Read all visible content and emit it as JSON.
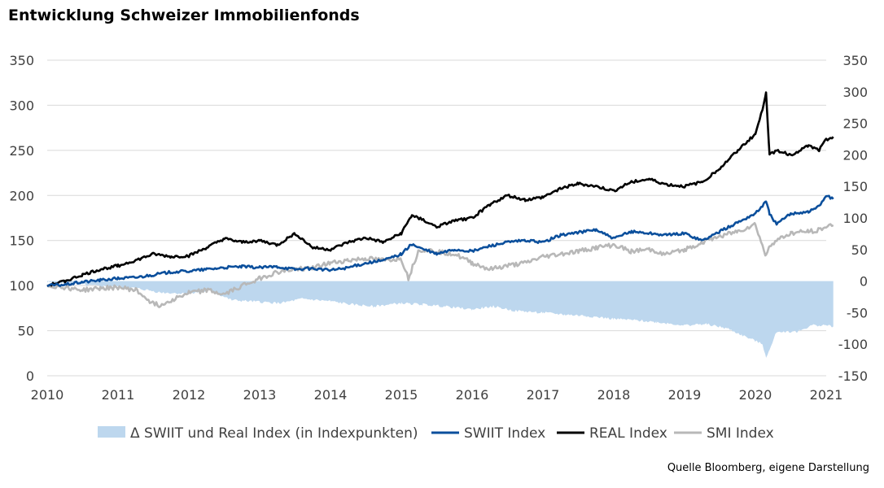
{
  "title": "Entwicklung Schweizer Immobilienfonds",
  "source": "Quelle Bloomberg, eigene Darstellung",
  "colors": {
    "swiit": "#0b4f9c",
    "real": "#000000",
    "smi": "#b8b8b8",
    "delta": "#bdd7ee",
    "grid": "#d9d9d9"
  },
  "chart_data": {
    "type": "line",
    "title": "Entwicklung Schweizer Immobilienfonds",
    "x_ticks": [
      "2010",
      "2011",
      "2012",
      "2013",
      "2014",
      "2015",
      "2016",
      "2017",
      "2018",
      "2019",
      "2020",
      "2021"
    ],
    "xlim": [
      2010,
      2021
    ],
    "y_left": {
      "lim": [
        0,
        350
      ],
      "ticks": [
        "0",
        "50",
        "100",
        "150",
        "200",
        "250",
        "300",
        "350"
      ]
    },
    "y_right": {
      "lim": [
        -150,
        350
      ],
      "ticks": [
        "-150",
        "-100",
        "-50",
        "0",
        "50",
        "100",
        "150",
        "200",
        "250",
        "300",
        "350"
      ]
    },
    "grid": true,
    "legend_position": "bottom",
    "series": [
      {
        "name": "Δ SWIIT und Real Index (in Indexpunkten)",
        "type": "area",
        "axis": "right",
        "x": [
          2010.0,
          2010.3,
          2010.6,
          2011.0,
          2011.3,
          2011.6,
          2012.0,
          2012.3,
          2012.6,
          2013.0,
          2013.3,
          2013.6,
          2014.0,
          2014.3,
          2014.6,
          2015.0,
          2015.3,
          2015.6,
          2016.0,
          2016.3,
          2016.6,
          2017.0,
          2017.3,
          2017.6,
          2018.0,
          2018.3,
          2018.6,
          2019.0,
          2019.3,
          2019.6,
          2019.8,
          2020.0,
          2020.1,
          2020.15,
          2020.2,
          2020.3,
          2020.6,
          2020.8,
          2021.0,
          2021.1
        ],
        "values": [
          -2,
          -3,
          -7,
          -9,
          -12,
          -18,
          -20,
          -15,
          -30,
          -33,
          -35,
          -28,
          -32,
          -37,
          -40,
          -35,
          -37,
          -40,
          -45,
          -40,
          -47,
          -50,
          -53,
          -55,
          -60,
          -62,
          -65,
          -70,
          -68,
          -75,
          -85,
          -95,
          -100,
          -120,
          -110,
          -80,
          -80,
          -70,
          -70,
          -72
        ]
      },
      {
        "name": "SWIIT Index",
        "type": "line",
        "axis": "left",
        "x": [
          2010.0,
          2010.25,
          2010.5,
          2010.75,
          2011.0,
          2011.25,
          2011.5,
          2011.75,
          2012.0,
          2012.25,
          2012.5,
          2012.75,
          2013.0,
          2013.25,
          2013.5,
          2013.75,
          2014.0,
          2014.25,
          2014.5,
          2014.75,
          2015.0,
          2015.15,
          2015.25,
          2015.5,
          2015.75,
          2016.0,
          2016.25,
          2016.5,
          2016.75,
          2017.0,
          2017.25,
          2017.5,
          2017.75,
          2018.0,
          2018.25,
          2018.5,
          2018.75,
          2019.0,
          2019.25,
          2019.5,
          2019.75,
          2020.0,
          2020.15,
          2020.2,
          2020.3,
          2020.5,
          2020.75,
          2020.9,
          2021.0,
          2021.1
        ],
        "values": [
          100,
          101,
          104,
          106,
          108,
          109,
          112,
          115,
          116,
          118,
          120,
          121,
          120,
          121,
          118,
          119,
          117,
          120,
          125,
          128,
          135,
          146,
          142,
          135,
          140,
          138,
          144,
          148,
          150,
          148,
          156,
          159,
          162,
          152,
          160,
          158,
          156,
          158,
          150,
          160,
          170,
          180,
          193,
          180,
          168,
          180,
          182,
          188,
          200,
          196
        ]
      },
      {
        "name": "REAL Index",
        "type": "line",
        "axis": "left",
        "x": [
          2010.0,
          2010.25,
          2010.5,
          2010.75,
          2011.0,
          2011.25,
          2011.5,
          2011.75,
          2012.0,
          2012.25,
          2012.5,
          2012.75,
          2013.0,
          2013.25,
          2013.5,
          2013.75,
          2014.0,
          2014.25,
          2014.5,
          2014.75,
          2015.0,
          2015.15,
          2015.25,
          2015.5,
          2015.75,
          2016.0,
          2016.25,
          2016.5,
          2016.75,
          2017.0,
          2017.25,
          2017.5,
          2017.75,
          2018.0,
          2018.25,
          2018.5,
          2018.75,
          2019.0,
          2019.25,
          2019.5,
          2019.75,
          2020.0,
          2020.1,
          2020.15,
          2020.2,
          2020.3,
          2020.5,
          2020.75,
          2020.9,
          2021.0,
          2021.1
        ],
        "values": [
          100,
          105,
          112,
          118,
          122,
          128,
          135,
          132,
          133,
          142,
          152,
          148,
          150,
          145,
          158,
          142,
          140,
          148,
          153,
          148,
          158,
          178,
          175,
          165,
          172,
          175,
          190,
          200,
          195,
          198,
          208,
          213,
          210,
          205,
          215,
          218,
          212,
          210,
          215,
          230,
          250,
          268,
          295,
          315,
          245,
          250,
          245,
          255,
          250,
          262,
          265
        ]
      },
      {
        "name": "SMI Index",
        "type": "line",
        "axis": "left",
        "x": [
          2010.0,
          2010.25,
          2010.5,
          2010.75,
          2011.0,
          2011.25,
          2011.5,
          2011.6,
          2011.75,
          2012.0,
          2012.25,
          2012.5,
          2012.75,
          2013.0,
          2013.25,
          2013.5,
          2013.75,
          2014.0,
          2014.25,
          2014.5,
          2014.75,
          2015.0,
          2015.1,
          2015.25,
          2015.5,
          2015.75,
          2016.0,
          2016.25,
          2016.5,
          2016.75,
          2017.0,
          2017.25,
          2017.5,
          2017.75,
          2018.0,
          2018.25,
          2018.5,
          2018.75,
          2019.0,
          2019.25,
          2019.5,
          2019.75,
          2020.0,
          2020.15,
          2020.2,
          2020.3,
          2020.5,
          2020.75,
          2020.9,
          2021.0,
          2021.1
        ],
        "values": [
          100,
          98,
          95,
          97,
          98,
          95,
          80,
          78,
          84,
          92,
          95,
          90,
          100,
          108,
          115,
          118,
          120,
          125,
          128,
          130,
          128,
          130,
          108,
          140,
          138,
          135,
          125,
          118,
          122,
          125,
          132,
          135,
          138,
          142,
          145,
          138,
          140,
          135,
          140,
          148,
          155,
          160,
          168,
          132,
          145,
          150,
          158,
          160,
          162,
          165,
          167
        ]
      }
    ]
  }
}
